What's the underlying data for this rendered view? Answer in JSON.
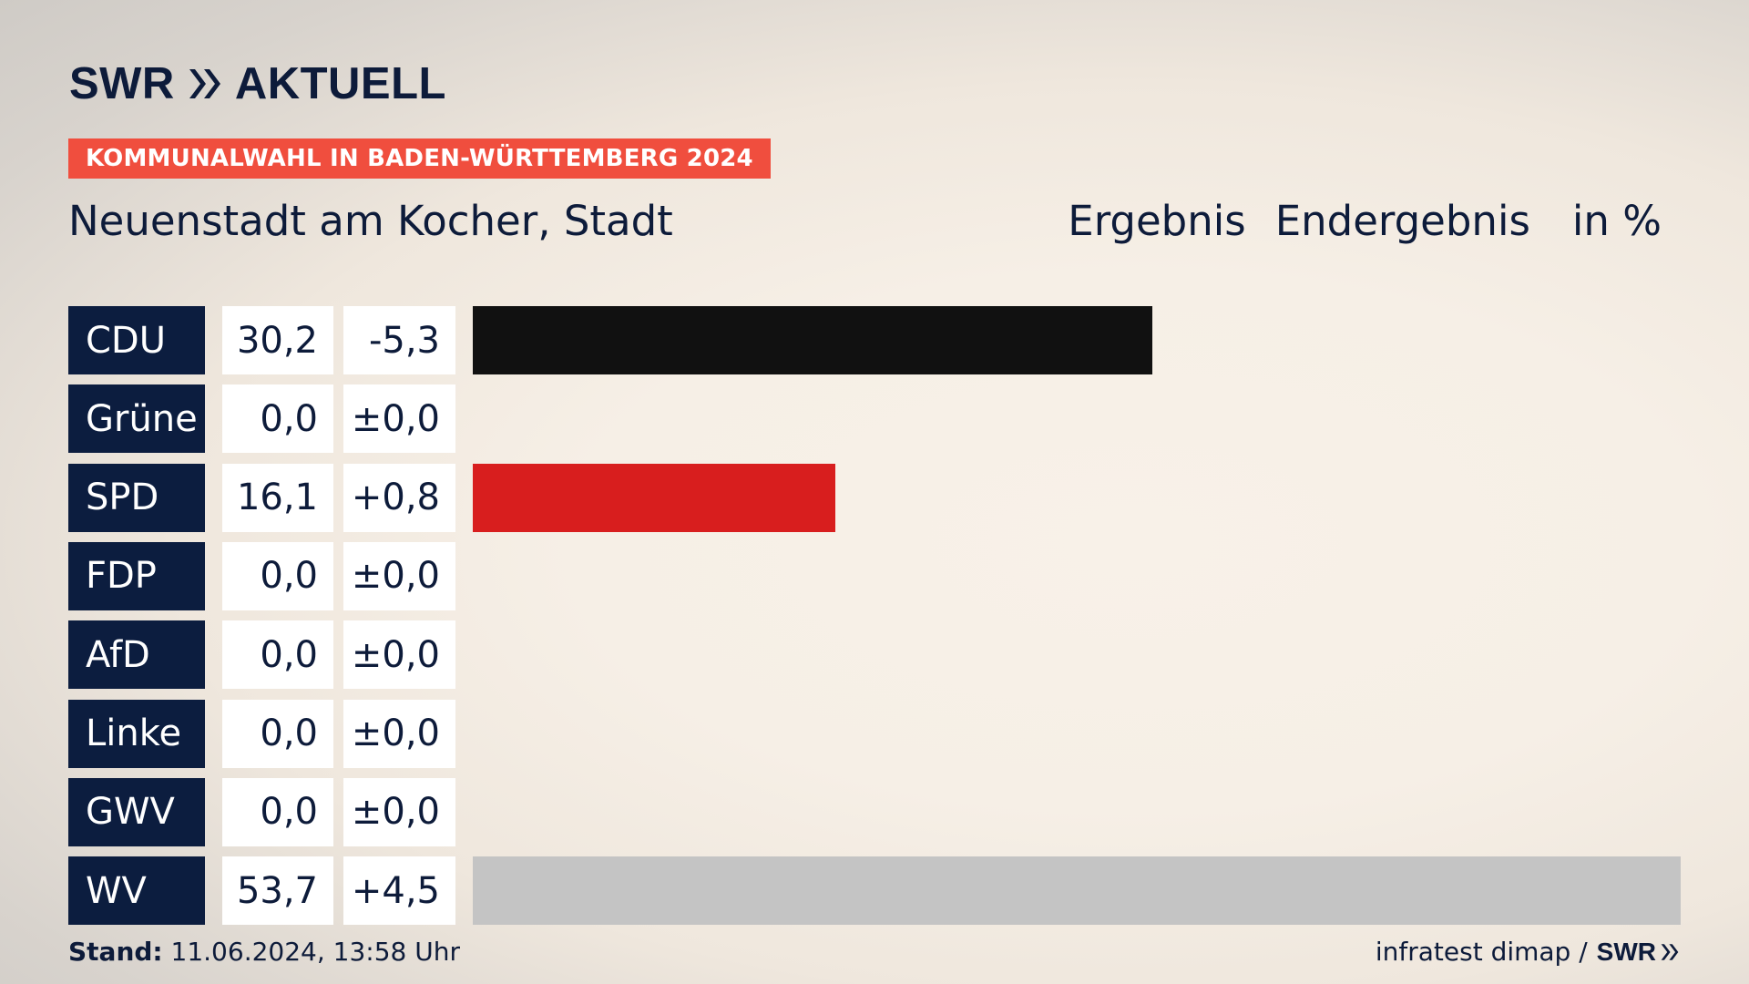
{
  "brand": {
    "swr": "SWR",
    "aktuell": "AKTUELL"
  },
  "badge": "KOMMUNALWAHL IN BADEN-WÜRTTEMBERG 2024",
  "place": "Neuenstadt am Kocher, Stadt",
  "header": {
    "col1": "Ergebnis",
    "col2": "Endergebnis",
    "unit": "in %"
  },
  "chart_data": {
    "type": "bar",
    "orientation": "horizontal",
    "categories": [
      "CDU",
      "Grüne",
      "SPD",
      "FDP",
      "AfD",
      "Linke",
      "GWV",
      "WV"
    ],
    "values": [
      30.2,
      0.0,
      16.1,
      0.0,
      0.0,
      0.0,
      0.0,
      53.7
    ],
    "value_labels": [
      "30,2",
      "0,0",
      "16,1",
      "0,0",
      "0,0",
      "0,0",
      "0,0",
      "53,7"
    ],
    "diffs": [
      -5.3,
      0.0,
      0.8,
      0.0,
      0.0,
      0.0,
      0.0,
      4.5
    ],
    "diff_labels": [
      "-5,3",
      "±0,0",
      "+0,8",
      "±0,0",
      "±0,0",
      "±0,0",
      "±0,0",
      "+4,5"
    ],
    "colors": [
      "#111111",
      "#4f9a3c",
      "#d81e1e",
      "#f4d000",
      "#1a9bd8",
      "#b0246e",
      "#8a8a8a",
      "#c4c4c4"
    ],
    "xlim": [
      0,
      53.7
    ]
  },
  "footer": {
    "stand_label": "Stand:",
    "stand_value": "11.06.2024, 13:58 Uhr",
    "source": "infratest dimap /",
    "source_brand": "SWR"
  }
}
